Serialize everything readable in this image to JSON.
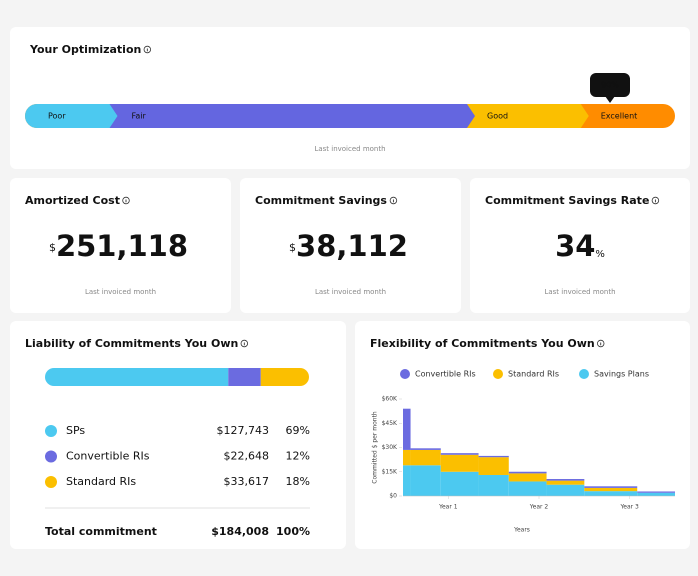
{
  "optimization": {
    "title": "Your Optimization",
    "segments": [
      "Poor",
      "Fair",
      "Good",
      "Excellent"
    ],
    "marker": {
      "value": 90,
      "label": "90%"
    },
    "note": "Last invoiced month"
  },
  "cards": [
    {
      "title": "Amortized Cost",
      "prefix": "$",
      "value": {
        "value": 251118,
        "label": "251,118"
      },
      "note": "Last invoiced month"
    },
    {
      "title": "Commitment Savings",
      "prefix": "$",
      "value": {
        "value": 38112,
        "label": "38,112"
      },
      "note": "Last invoiced month"
    },
    {
      "title": "Commitment Savings Rate",
      "value": 34,
      "suffix": "%",
      "note": "Last invoiced month"
    }
  ],
  "liability": {
    "title": "Liability of Commitments You Own",
    "items": [
      {
        "name": "SPs",
        "color": "#4cc9f0",
        "amount": {
          "value": 127743,
          "label": "$127,743"
        },
        "share": {
          "value": 69,
          "label": "69%"
        }
      },
      {
        "name": "Convertible RIs",
        "color": "#6b6be0",
        "amount": {
          "value": 22648,
          "label": "$22,648"
        },
        "share": {
          "value": 12,
          "label": "12%"
        }
      },
      {
        "name": "Standard RIs",
        "color": "#fbbf00",
        "amount": {
          "value": 33617,
          "label": "$33,617"
        },
        "share": {
          "value": 18,
          "label": "18%"
        }
      }
    ],
    "total": {
      "label": "Total commitment",
      "amount": {
        "value": 184008,
        "label": "$184,008"
      },
      "share": {
        "value": 100,
        "label": "100%"
      }
    }
  },
  "flexibility": {
    "title": "Flexibility of Commitments You Own",
    "type": "step-area",
    "y_label": "Committed $ per month",
    "x_label": "Years",
    "bins": [
      0,
      1,
      5,
      10,
      14,
      19,
      24,
      31,
      36
    ],
    "xlim": [
      0,
      36
    ],
    "xticks": [
      {
        "value": 6,
        "label": "Year 1"
      },
      {
        "value": 18,
        "label": "Year 2"
      },
      {
        "value": 30,
        "label": "Year 3"
      }
    ],
    "ylim": [
      0,
      60000
    ],
    "yticks": [
      {
        "value": 0,
        "label": "$0"
      },
      {
        "value": 15000,
        "label": "$15K"
      },
      {
        "value": 30000,
        "label": "$30K"
      },
      {
        "value": 45000,
        "label": "$45K"
      },
      {
        "value": 60000,
        "label": "$60K"
      }
    ],
    "series": [
      {
        "name": "Convertible RIs",
        "color": "#6b6be0",
        "values": [
          25500,
          1000,
          1000,
          800,
          1000,
          1000,
          1000,
          800
        ]
      },
      {
        "name": "Standard RIs",
        "color": "#fbbf00",
        "values": [
          9500,
          9500,
          10500,
          11000,
          5000,
          2500,
          2000,
          0
        ]
      },
      {
        "name": "Savings Plans",
        "color": "#4cc9f0",
        "values": [
          19000,
          19000,
          15000,
          13000,
          9000,
          7000,
          3000,
          2000
        ]
      }
    ]
  }
}
